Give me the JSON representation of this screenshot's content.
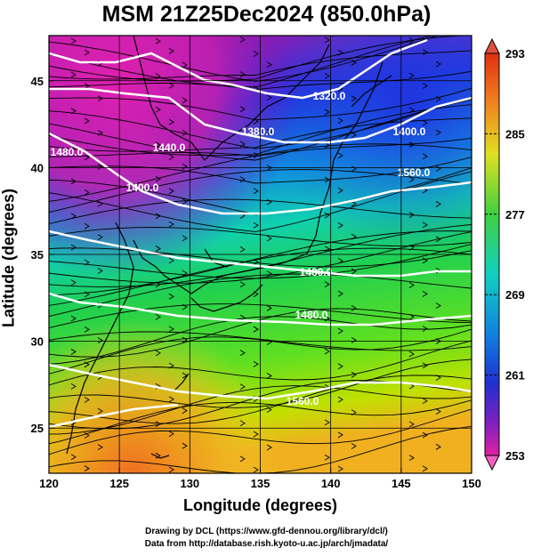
{
  "title": "MSM 21Z25Dec2024 (850.0hPa)",
  "xlabel": "Longitude (degrees)",
  "ylabel": "Latitude  (degrees)",
  "footer": {
    "line1": "Drawing by DCL (https://www.gfd-dennou.org/library/dcl/)",
    "line2": "Data from http://database.rish.kyoto-u.ac.jp/arch/jmadata/"
  },
  "chart_data": {
    "type": "heatmap",
    "xlim": [
      120,
      150
    ],
    "ylim": [
      22.4,
      47.6
    ],
    "x_ticks": [
      "120",
      "125",
      "130",
      "135",
      "140",
      "145",
      "150"
    ],
    "x_tick_values": [
      120,
      125,
      130,
      135,
      140,
      145,
      150
    ],
    "y_ticks": [
      "25",
      "30",
      "35",
      "40",
      "45"
    ],
    "y_tick_values": [
      25,
      30,
      35,
      40,
      45
    ],
    "grid": true,
    "colorbar": {
      "labels": [
        "293",
        "285",
        "277",
        "269",
        "261",
        "253"
      ],
      "values": [
        293,
        285,
        277,
        269,
        261,
        253
      ],
      "min": 253,
      "max": 293
    },
    "contour_labels": [
      "1320.0",
      "1380.0",
      "1400.0",
      "1440.0",
      "1480.0",
      "1400.0",
      "1480.0",
      "1480.0",
      "1560.0",
      "1560.0"
    ],
    "colors": {
      "cold": "#d010a0",
      "cool": "#2040e0",
      "mid": "#10d0c0",
      "warm": "#30e040",
      "hot": "#f0a020",
      "contour": "#ffffff"
    }
  }
}
